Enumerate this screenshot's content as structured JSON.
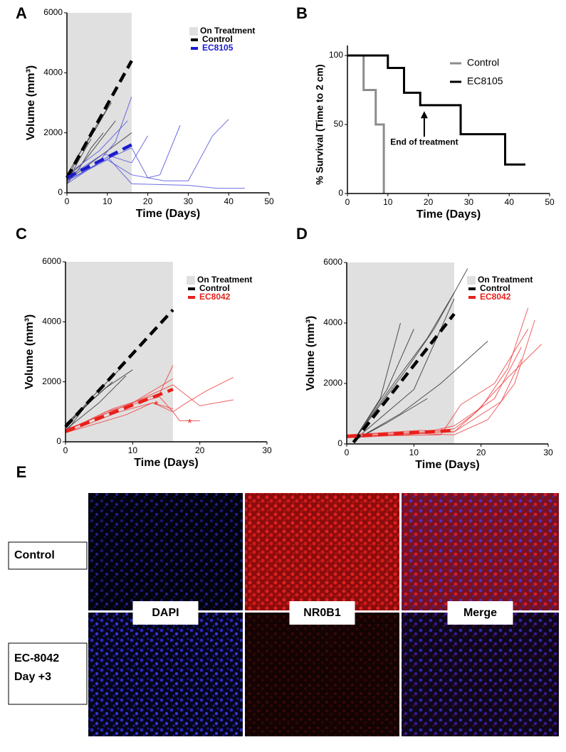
{
  "chart_data": [
    {
      "panel_label": "A",
      "type": "line",
      "xlabel": "Time (Days)",
      "ylabel": "Volume (mm³)",
      "xlim": [
        0,
        50
      ],
      "ylim": [
        0,
        6000
      ],
      "xticks": [
        0,
        10,
        20,
        30,
        40,
        50
      ],
      "yticks": [
        0,
        2000,
        4000,
        6000
      ],
      "shaded_span": {
        "label": "On Treatment",
        "x": [
          0,
          16
        ],
        "color": "#e0e0e0"
      },
      "series": [
        {
          "name": "Control",
          "color": "#000000",
          "dashed": true,
          "x": [
            0,
            16
          ],
          "values": [
            500,
            4400
          ]
        },
        {
          "name": "EC8105",
          "color": "#1a1acc",
          "dashed": true,
          "x": [
            0,
            16
          ],
          "values": [
            500,
            1600
          ]
        }
      ],
      "traces": [
        {
          "color": "#333333",
          "x": [
            0,
            3,
            7,
            10
          ],
          "values": [
            400,
            1300,
            2100,
            2800
          ]
        },
        {
          "color": "#333333",
          "x": [
            0,
            4,
            8,
            11
          ],
          "values": [
            600,
            1500,
            2400,
            3000
          ]
        },
        {
          "color": "#333333",
          "x": [
            0,
            3,
            6,
            9
          ],
          "values": [
            300,
            800,
            1500,
            2000
          ]
        },
        {
          "color": "#333333",
          "x": [
            0,
            4,
            8,
            12
          ],
          "values": [
            500,
            1000,
            1700,
            2400
          ]
        },
        {
          "color": "#333333",
          "x": [
            0,
            5,
            10,
            16
          ],
          "values": [
            400,
            900,
            1400,
            2000
          ]
        },
        {
          "color": "#333333",
          "x": [
            0,
            3,
            6
          ],
          "values": [
            350,
            1100,
            1800
          ]
        },
        {
          "color": "#5555dd",
          "x": [
            0,
            7,
            12,
            16
          ],
          "values": [
            400,
            900,
            1700,
            3200
          ]
        },
        {
          "color": "#5555dd",
          "x": [
            0,
            8,
            16,
            20,
            23,
            28
          ],
          "values": [
            400,
            1000,
            1500,
            500,
            600,
            2250
          ]
        },
        {
          "color": "#5555dd",
          "x": [
            0,
            10,
            16,
            24,
            30,
            36,
            40
          ],
          "values": [
            400,
            1100,
            600,
            400,
            400,
            1900,
            2450
          ]
        },
        {
          "color": "#5555dd",
          "x": [
            0,
            10,
            16,
            30,
            37,
            44
          ],
          "values": [
            300,
            1200,
            300,
            250,
            150,
            150
          ]
        },
        {
          "color": "#5555dd",
          "x": [
            0,
            8,
            15
          ],
          "values": [
            600,
            1400,
            2400
          ]
        },
        {
          "color": "#5555dd",
          "x": [
            0,
            9,
            16,
            20
          ],
          "values": [
            500,
            1300,
            1000,
            1900
          ]
        }
      ]
    },
    {
      "panel_label": "B",
      "type": "step",
      "xlabel": "Time (Days)",
      "ylabel": "% Survival (Time to 2 cm)",
      "xlim": [
        0,
        50
      ],
      "ylim": [
        0,
        100
      ],
      "xticks": [
        0,
        10,
        20,
        30,
        40,
        50
      ],
      "yticks": [
        0,
        50,
        100
      ],
      "series": [
        {
          "name": "Control",
          "color": "#8c8c8c",
          "x": [
            0,
            4,
            7,
            9
          ],
          "values": [
            100,
            75,
            50,
            0
          ]
        },
        {
          "name": "EC8105",
          "color": "#000000",
          "x": [
            0,
            10,
            14,
            18,
            28,
            39,
            44
          ],
          "values": [
            100,
            91,
            73,
            64,
            43,
            21,
            21
          ]
        }
      ],
      "annotations": [
        {
          "text": "End of treatment",
          "x": 19,
          "y": 37
        }
      ]
    },
    {
      "panel_label": "C",
      "type": "line",
      "xlabel": "Time (Days)",
      "ylabel": "Volume (mm³)",
      "xlim": [
        0,
        30
      ],
      "ylim": [
        0,
        6000
      ],
      "xticks": [
        0,
        10,
        20,
        30
      ],
      "yticks": [
        0,
        2000,
        4000,
        6000
      ],
      "shaded_span": {
        "label": "On Treatment",
        "x": [
          0,
          16
        ],
        "color": "#e0e0e0"
      },
      "series": [
        {
          "name": "Control",
          "color": "#000000",
          "dashed": true,
          "x": [
            0,
            16
          ],
          "values": [
            500,
            4400
          ]
        },
        {
          "name": "EC8042",
          "color": "#e8201a",
          "dashed": true,
          "x": [
            0,
            16
          ],
          "values": [
            350,
            1750
          ]
        }
      ],
      "traces": [
        {
          "color": "#333333",
          "x": [
            0,
            4,
            8
          ],
          "values": [
            500,
            1500,
            2400
          ]
        },
        {
          "color": "#333333",
          "x": [
            0,
            3,
            7
          ],
          "values": [
            300,
            1200,
            2000
          ]
        },
        {
          "color": "#333333",
          "x": [
            0,
            5,
            9
          ],
          "values": [
            400,
            1300,
            2200
          ]
        },
        {
          "color": "#333333",
          "x": [
            0,
            6,
            10
          ],
          "values": [
            600,
            1800,
            2400
          ]
        },
        {
          "color": "#333333",
          "x": [
            0,
            4
          ],
          "values": [
            500,
            1400
          ]
        },
        {
          "color": "#ee4444",
          "x": [
            0,
            7,
            14,
            16
          ],
          "values": [
            350,
            1100,
            1600,
            2550
          ]
        },
        {
          "color": "#ee4444",
          "x": [
            0,
            8,
            13,
            16,
            18,
            21,
            25
          ],
          "values": [
            300,
            1000,
            1300,
            1000,
            1300,
            1700,
            2150
          ]
        },
        {
          "color": "#ee4444",
          "x": [
            0,
            10,
            16,
            20,
            25
          ],
          "values": [
            400,
            1300,
            1900,
            1200,
            1400
          ]
        },
        {
          "color": "#ee4444",
          "x": [
            0,
            9,
            13,
            16
          ],
          "values": [
            300,
            900,
            1300,
            1100
          ]
        },
        {
          "color": "#ee4444",
          "x": [
            0,
            6,
            14,
            16,
            17,
            20
          ],
          "values": [
            350,
            1000,
            1500,
            1000,
            700,
            700
          ]
        },
        {
          "color": "#ee4444",
          "x": [
            0,
            10,
            16
          ],
          "values": [
            400,
            1300,
            2100
          ]
        }
      ],
      "annotations": [
        {
          "text": "*",
          "x": 13.5,
          "y": 1200
        },
        {
          "text": "*",
          "x": 18.5,
          "y": 600
        }
      ]
    },
    {
      "panel_label": "D",
      "type": "line",
      "xlabel": "Time (Days)",
      "ylabel": "Volume (mm³)",
      "xlim": [
        0,
        30
      ],
      "ylim": [
        0,
        6000
      ],
      "xticks": [
        0,
        10,
        20,
        30
      ],
      "yticks": [
        0,
        2000,
        4000,
        6000
      ],
      "shaded_span": {
        "label": "On Treatment",
        "x": [
          0,
          16
        ],
        "color": "#e0e0e0"
      },
      "series": [
        {
          "name": "Control",
          "color": "#000000",
          "dashed": true,
          "x": [
            1,
            16
          ],
          "values": [
            50,
            4300
          ]
        },
        {
          "name": "EC8042",
          "color": "#e8201a",
          "dashed": true,
          "x": [
            0,
            16
          ],
          "values": [
            250,
            450
          ]
        }
      ],
      "traces": [
        {
          "color": "#333333",
          "x": [
            1,
            5,
            8
          ],
          "values": [
            100,
            1500,
            4000
          ]
        },
        {
          "color": "#333333",
          "x": [
            1,
            6,
            10
          ],
          "values": [
            100,
            1800,
            3800
          ]
        },
        {
          "color": "#333333",
          "x": [
            1,
            7,
            12,
            16
          ],
          "values": [
            100,
            2000,
            3500,
            5000
          ]
        },
        {
          "color": "#333333",
          "x": [
            1,
            9,
            13,
            18
          ],
          "values": [
            100,
            2500,
            3800,
            5800
          ]
        },
        {
          "color": "#333333",
          "x": [
            1,
            8,
            14,
            21
          ],
          "values": [
            100,
            1000,
            2000,
            3400
          ]
        },
        {
          "color": "#333333",
          "x": [
            1,
            6,
            12
          ],
          "values": [
            100,
            700,
            1500
          ]
        },
        {
          "color": "#333333",
          "x": [
            1,
            10,
            16
          ],
          "values": [
            100,
            1800,
            4800
          ]
        },
        {
          "color": "#ee4444",
          "x": [
            0,
            8,
            16,
            20,
            24,
            27
          ],
          "values": [
            250,
            300,
            400,
            1200,
            2500,
            4500
          ]
        },
        {
          "color": "#ee4444",
          "x": [
            0,
            10,
            16,
            21,
            25,
            28
          ],
          "values": [
            250,
            350,
            300,
            800,
            2000,
            4100
          ]
        },
        {
          "color": "#ee4444",
          "x": [
            0,
            12,
            16,
            22,
            26
          ],
          "values": [
            300,
            400,
            600,
            1500,
            3200
          ]
        },
        {
          "color": "#ee4444",
          "x": [
            0,
            9,
            16,
            19,
            24,
            29
          ],
          "values": [
            200,
            300,
            500,
            1000,
            2200,
            3300
          ]
        },
        {
          "color": "#ee4444",
          "x": [
            0,
            14,
            17,
            22,
            27
          ],
          "values": [
            250,
            300,
            1300,
            2000,
            3800
          ]
        },
        {
          "color": "#ee4444",
          "x": [
            0,
            11,
            16,
            23,
            26
          ],
          "values": [
            300,
            450,
            400,
            1400,
            2800
          ]
        }
      ]
    }
  ],
  "panel_e": {
    "panel_label": "E",
    "columns": [
      "DAPI",
      "NR0B1",
      "Merge"
    ],
    "rows": [
      [
        "Control"
      ],
      [
        "EC-8042",
        "Day +3"
      ]
    ]
  }
}
